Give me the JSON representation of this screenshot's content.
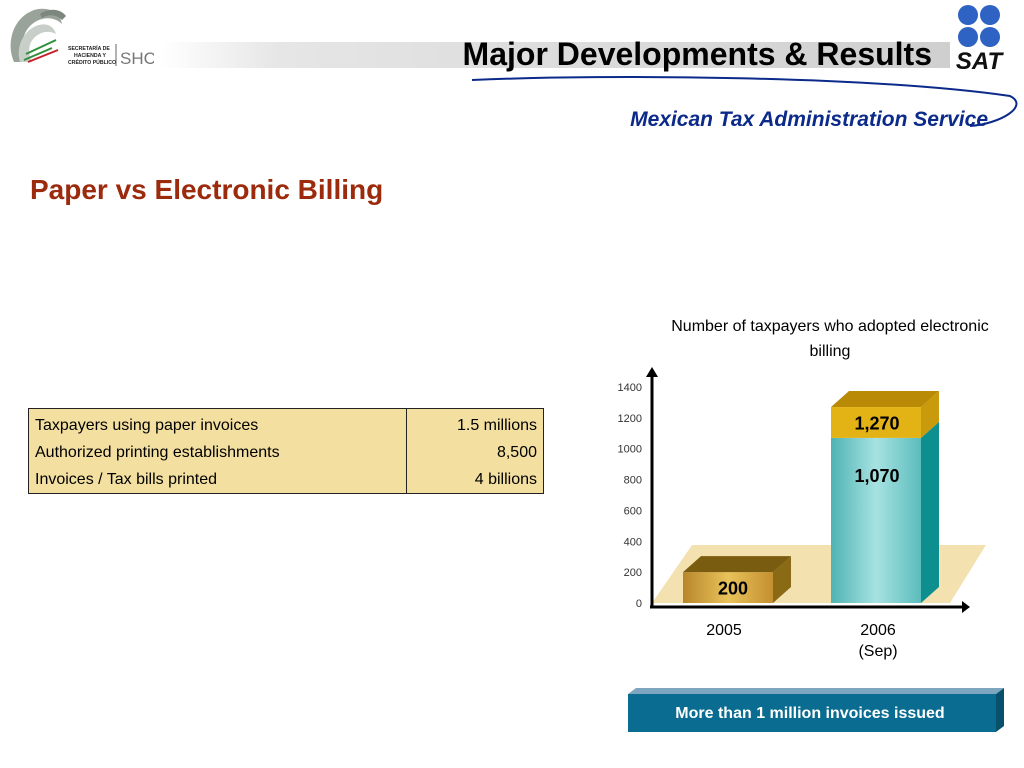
{
  "header": {
    "title": "Major Developments & Results",
    "subtitle": "Mexican Tax Administration Service",
    "left_logo": {
      "icon": "mexico-eagle-seal-icon",
      "text": [
        "SECRETARÍA DE",
        "HACIENDA Y",
        "CRÉDITO PÚBLICO"
      ],
      "brand": "SHCP"
    },
    "right_logo": {
      "icon": "sat-dots-logo-icon",
      "text": "SAT",
      "dot_color": "#2e62c3"
    }
  },
  "section_title": "Paper vs Electronic Billing",
  "info_table": {
    "rows": [
      {
        "label": "Taxpayers using paper invoices",
        "value": "1.5 millions"
      },
      {
        "label": "Authorized printing establishments",
        "value": "8,500"
      },
      {
        "label": "Invoices / Tax bills printed",
        "value": "4 billions"
      }
    ]
  },
  "chart_data": {
    "type": "bar",
    "title": "Number of taxpayers who adopted electronic billing",
    "categories": [
      "2005",
      "2006 (Sep)"
    ],
    "category_labels": [
      [
        "2005"
      ],
      [
        "2006",
        "(Sep)"
      ]
    ],
    "series": [
      {
        "values": [
          200,
          1070
        ],
        "color": "#8fd3d3"
      },
      {
        "values": [
          0,
          200
        ],
        "color": "#e3b316"
      }
    ],
    "data_labels": [
      "200",
      "1,070",
      "1,270"
    ],
    "ylim": [
      0,
      1400
    ],
    "yticks": [
      0,
      200,
      400,
      600,
      800,
      1000,
      1200,
      1400
    ],
    "xlabel": "",
    "ylabel": "",
    "grid": false,
    "colors": {
      "bar_2005": "#d3a22e",
      "bar_2006": "#8fd3d3",
      "bar_2006_top": "#e3b316",
      "floor": "#f3e2b0"
    }
  },
  "banner": {
    "label": "More than 1 million invoices issued",
    "color": "#0b6c91"
  }
}
